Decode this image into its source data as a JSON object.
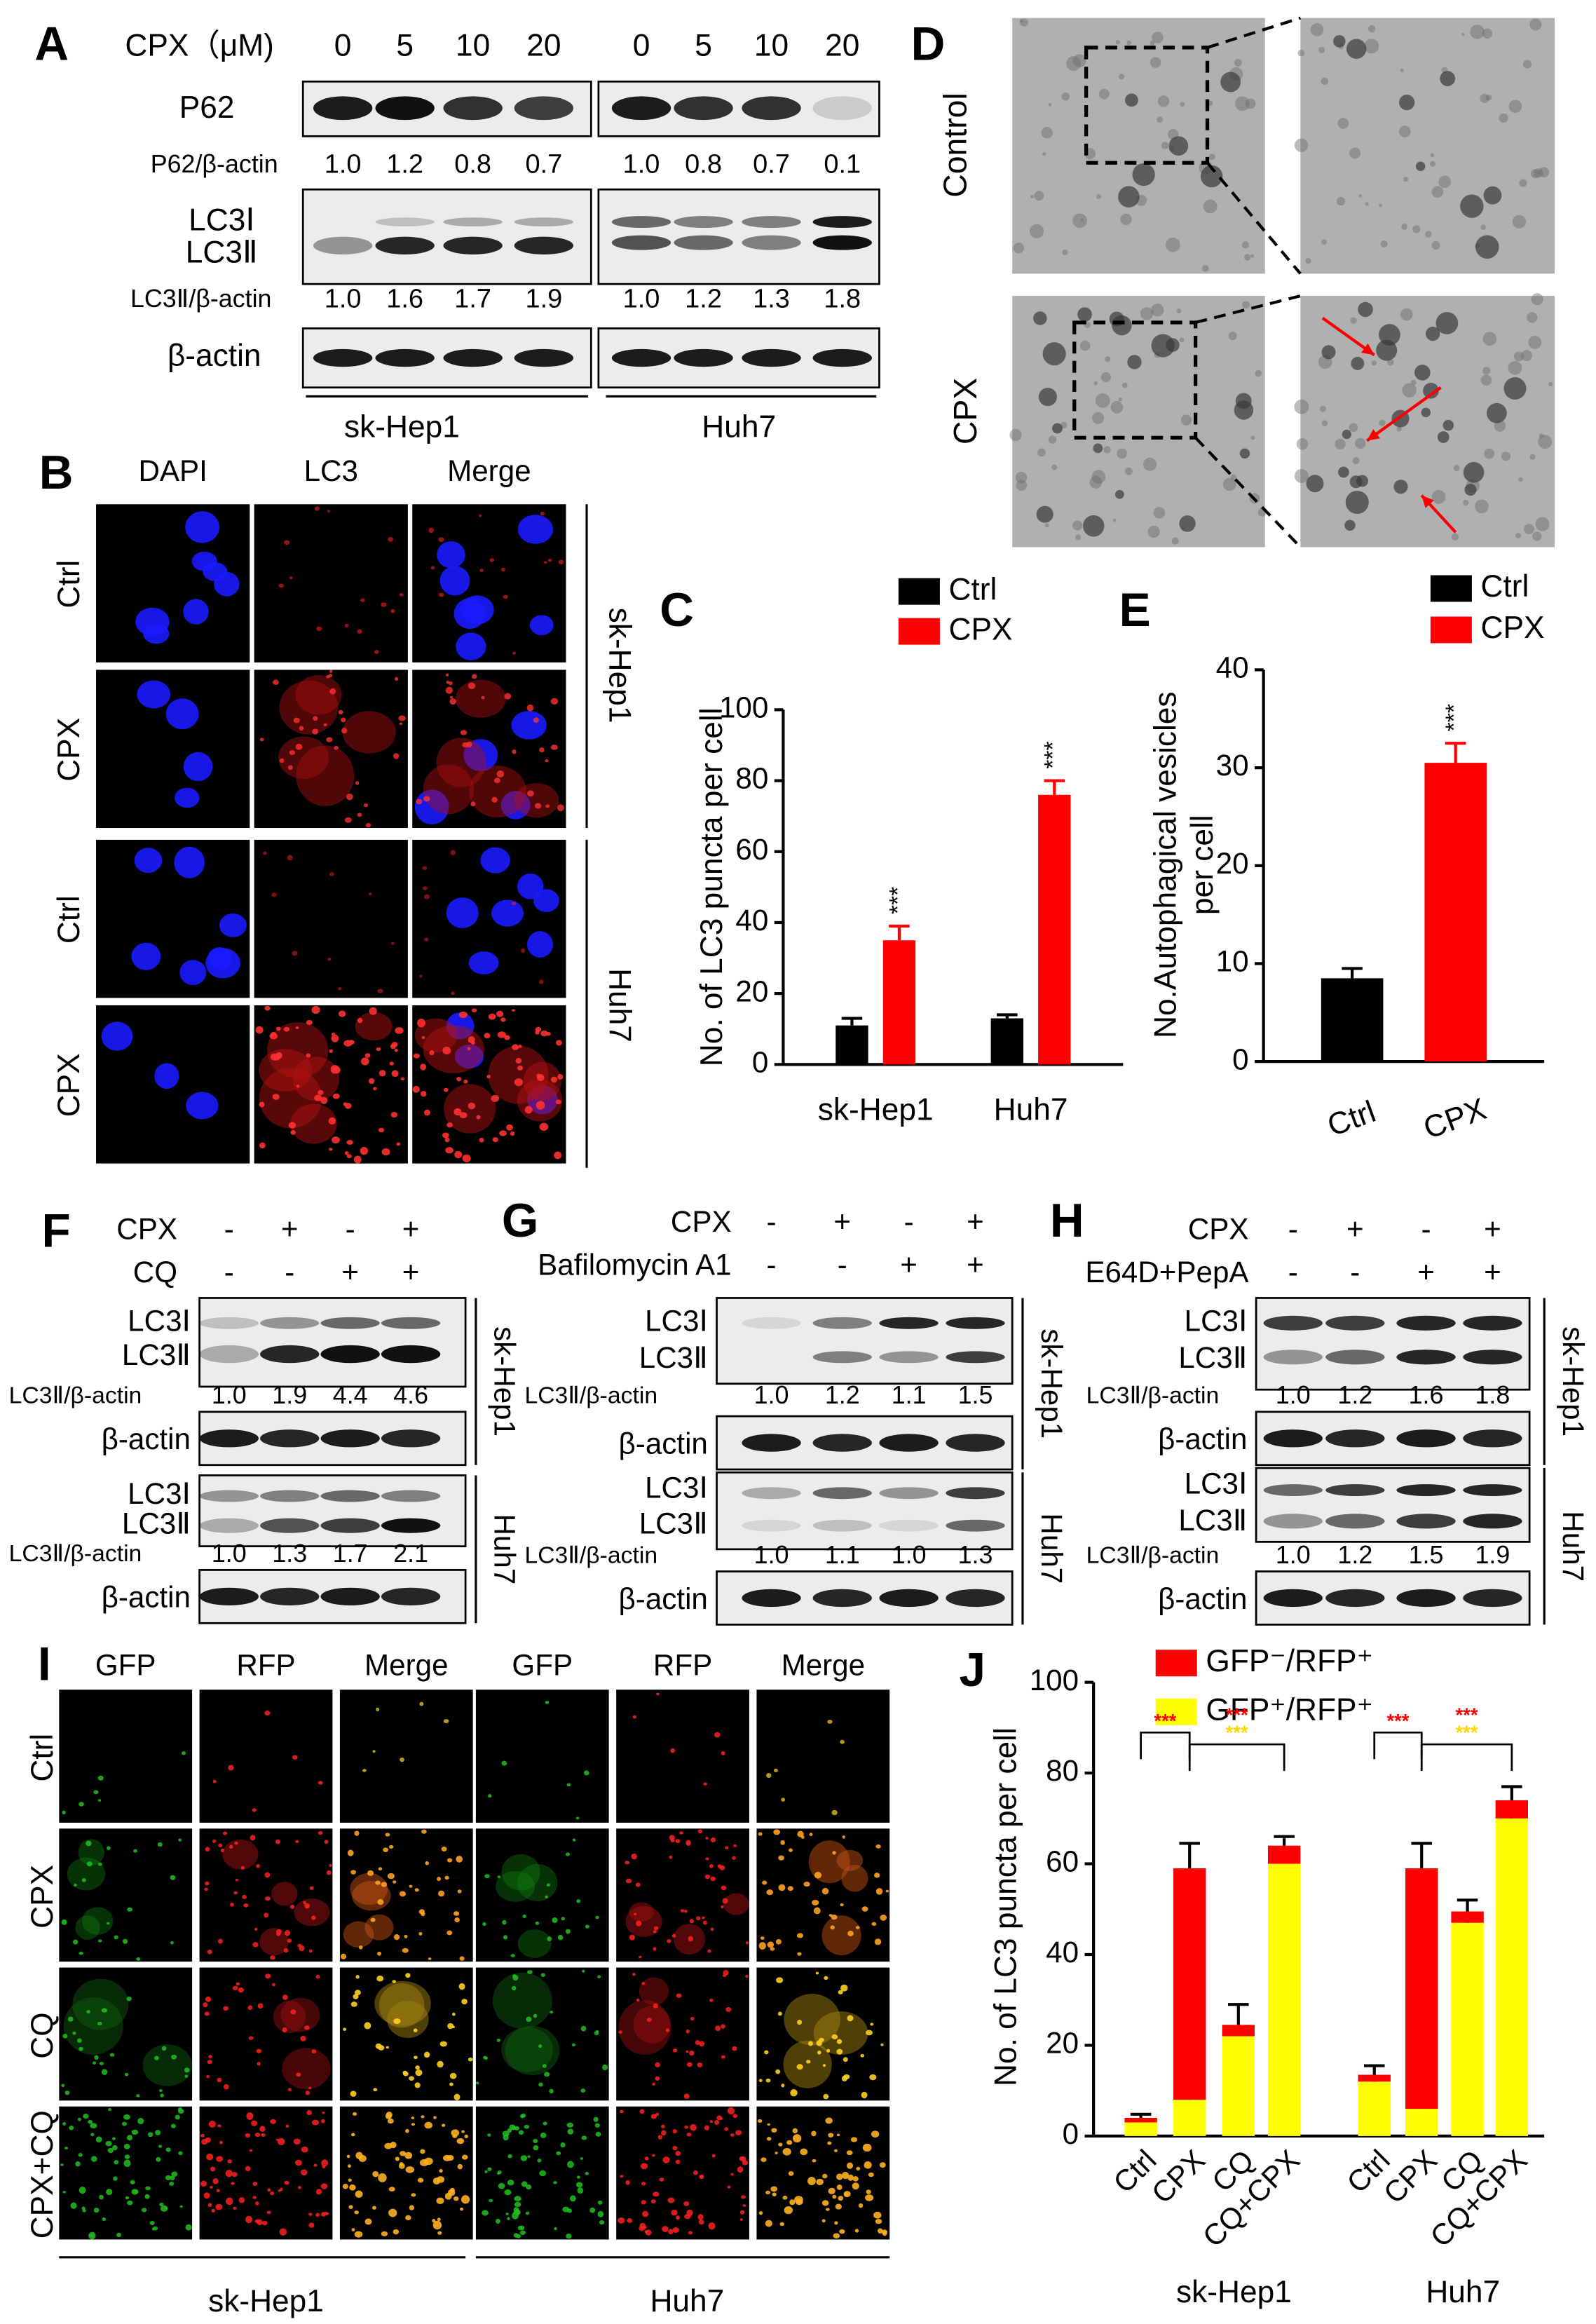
{
  "panel_a": {
    "label": "A",
    "treatment": "CPX（μM)",
    "doses": [
      "0",
      "5",
      "10",
      "20"
    ],
    "blots": {
      "p62": "P62",
      "p62_ratio_label": "P62/β-actin",
      "lc3_1": "LC3Ⅰ",
      "lc3_2": "LC3Ⅱ",
      "lc3_ratio_label": "LC3Ⅱ/β-actin",
      "actin": "β-actin"
    },
    "cell_lines": [
      {
        "name": "sk-Hep1",
        "p62_ratios": [
          "1.0",
          "1.2",
          "0.8",
          "0.7"
        ],
        "lc3_ratios": [
          "1.0",
          "1.6",
          "1.7",
          "1.9"
        ]
      },
      {
        "name": "Huh7",
        "p62_ratios": [
          "1.0",
          "0.8",
          "0.7",
          "0.1"
        ],
        "lc3_ratios": [
          "1.0",
          "1.2",
          "1.3",
          "1.8"
        ]
      }
    ]
  },
  "panel_b": {
    "label": "B",
    "columns": [
      "DAPI",
      "LC3",
      "Merge"
    ],
    "rows": [
      "Ctrl",
      "CPX",
      "Ctrl",
      "CPX"
    ],
    "cell_lines": [
      "sk-Hep1",
      "Huh7"
    ]
  },
  "panel_d": {
    "label": "D",
    "rows": [
      "Control",
      "CPX"
    ]
  },
  "panel_f": {
    "label": "F",
    "treatments": [
      {
        "name": "CPX",
        "signs": [
          "-",
          "+",
          "-",
          "+"
        ]
      },
      {
        "name": "CQ",
        "signs": [
          "-",
          "-",
          "+",
          "+"
        ]
      }
    ],
    "bands": [
      "LC3Ⅰ",
      "LC3Ⅱ"
    ],
    "ratio_label": "LC3Ⅱ/β-actin",
    "actin": "β-actin",
    "cell_lines": [
      {
        "name": "sk-Hep1",
        "ratios": [
          "1.0",
          "1.9",
          "4.4",
          "4.6"
        ]
      },
      {
        "name": "Huh7",
        "ratios": [
          "1.0",
          "1.3",
          "1.7",
          "2.1"
        ]
      }
    ]
  },
  "panel_g": {
    "label": "G",
    "treatments": [
      {
        "name": "CPX",
        "signs": [
          "-",
          "+",
          "-",
          "+"
        ]
      },
      {
        "name": "Bafilomycin A1",
        "signs": [
          "-",
          "-",
          "+",
          "+"
        ]
      }
    ],
    "bands": [
      "LC3Ⅰ",
      "LC3Ⅱ"
    ],
    "ratio_label": "LC3Ⅱ/β-actin",
    "actin": "β-actin",
    "cell_lines": [
      {
        "name": "sk-Hep1",
        "ratios": [
          "1.0",
          "1.2",
          "1.1",
          "1.5"
        ]
      },
      {
        "name": "Huh7",
        "ratios": [
          "1.0",
          "1.1",
          "1.0",
          "1.3"
        ]
      }
    ]
  },
  "panel_h": {
    "label": "H",
    "treatments": [
      {
        "name": "CPX",
        "signs": [
          "-",
          "+",
          "-",
          "+"
        ]
      },
      {
        "name": "E64D+PepA",
        "signs": [
          "-",
          "-",
          "+",
          "+"
        ]
      }
    ],
    "bands": [
      "LC3Ⅰ",
      "LC3Ⅱ"
    ],
    "ratio_label": "LC3Ⅱ/β-actin",
    "actin": "β-actin",
    "cell_lines": [
      {
        "name": "sk-Hep1",
        "ratios": [
          "1.0",
          "1.2",
          "1.6",
          "1.8"
        ]
      },
      {
        "name": "Huh7",
        "ratios": [
          "1.0",
          "1.2",
          "1.5",
          "1.9"
        ]
      }
    ]
  },
  "panel_i": {
    "label": "I",
    "columns": [
      "GFP",
      "RFP",
      "Merge",
      "GFP",
      "RFP",
      "Merge"
    ],
    "rows": [
      "Ctrl",
      "CPX",
      "CQ",
      "CPX+CQ"
    ],
    "cell_lines": [
      "sk-Hep1",
      "Huh7"
    ]
  },
  "chart_data": [
    {
      "type": "bar",
      "label": "C",
      "y_label": "No. of LC3 puncta per cell",
      "categories": [
        "sk-Hep1",
        "Huh7"
      ],
      "series": [
        {
          "name": "Ctrl",
          "color": "#000000",
          "values": [
            11,
            13
          ],
          "errors": [
            2,
            1
          ]
        },
        {
          "name": "CPX",
          "color": "#ff0000",
          "values": [
            35,
            76
          ],
          "errors": [
            4,
            4
          ],
          "annotations": [
            "***",
            "***"
          ]
        }
      ],
      "ylim": [
        0,
        100
      ],
      "yticks": [
        0,
        20,
        40,
        60,
        80,
        100
      ]
    },
    {
      "type": "bar",
      "label": "E",
      "y_label": [
        "No.Autophagical vesicles",
        "per cell"
      ],
      "categories": [
        "Ctrl",
        "CPX"
      ],
      "values": [
        8.5,
        30.5
      ],
      "errors": [
        1,
        2
      ],
      "colors": [
        "#000000",
        "#ff0000"
      ],
      "legend": [
        "Ctrl",
        "CPX"
      ],
      "annotations": [
        null,
        "***"
      ],
      "ylim": [
        0,
        40
      ],
      "yticks": [
        0,
        10,
        20,
        30,
        40
      ]
    },
    {
      "type": "stacked_bar",
      "label": "J",
      "y_label": "No. of LC3 puncta per cell",
      "categories": [
        "Ctrl",
        "CPX",
        "CQ",
        "CQ+CPX",
        "Ctrl",
        "CPX",
        "CQ",
        "CQ+CPX"
      ],
      "groups": [
        "sk-Hep1",
        "Huh7"
      ],
      "series": [
        {
          "name": "GFP⁺/RFP⁺",
          "color": "#ffff00",
          "values": [
            3,
            8,
            22,
            60,
            12,
            6,
            47,
            70
          ],
          "errors": [
            0.5,
            2,
            2,
            1,
            1,
            1,
            1.5,
            2
          ]
        },
        {
          "name": "GFP⁻/RFP⁺",
          "color": "#ff0000",
          "values": [
            1,
            51,
            2.5,
            4,
            1.5,
            53,
            2.5,
            4
          ],
          "errors": [
            0.8,
            5.5,
            4.5,
            2,
            2,
            5.5,
            2.5,
            3
          ]
        }
      ],
      "significance": [
        {
          "text": "***",
          "color": "#ff0000"
        },
        {
          "text": "***",
          "color": "#ff0000"
        },
        {
          "text": "***",
          "color": "#ffd700"
        },
        {
          "text": "***",
          "color": "#ff0000"
        },
        {
          "text": "***",
          "color": "#ff0000"
        },
        {
          "text": "***",
          "color": "#ffd700"
        }
      ],
      "ylim": [
        0,
        100
      ],
      "yticks": [
        0,
        20,
        40,
        60,
        80,
        100
      ]
    }
  ]
}
